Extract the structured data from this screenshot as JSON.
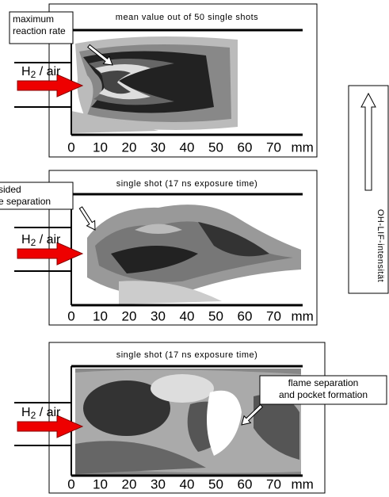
{
  "panels": [
    {
      "caption": "mean value out of 50 single shots",
      "inlet": {
        "main": "H",
        "sub": "2",
        "rest": " / air"
      },
      "callout": {
        "lines": [
          "maximum",
          "reaction rate"
        ]
      },
      "x_axis": {
        "ticks": [
          0,
          10,
          20,
          30,
          40,
          50,
          60,
          70
        ],
        "unit": "mm"
      }
    },
    {
      "caption": "single shot (17 ns exposure time)",
      "inlet": {
        "main": "H",
        "sub": "2",
        "rest": " / air"
      },
      "callout": {
        "lines": [
          "sided",
          "e separation"
        ]
      },
      "x_axis": {
        "ticks": [
          0,
          10,
          20,
          30,
          40,
          50,
          60,
          70
        ],
        "unit": "mm"
      }
    },
    {
      "caption": "single shot (17 ns exposure time)",
      "inlet": {
        "main": "H",
        "sub": "2",
        "rest": " / air"
      },
      "callout": {
        "lines": [
          "flame separation",
          "and pocket formation"
        ]
      },
      "x_axis": {
        "ticks": [
          0,
          10,
          20,
          30,
          40,
          50,
          60,
          70
        ],
        "unit": "mm"
      }
    }
  ],
  "scale_bar": {
    "label": "OH-LIF-intensität"
  }
}
